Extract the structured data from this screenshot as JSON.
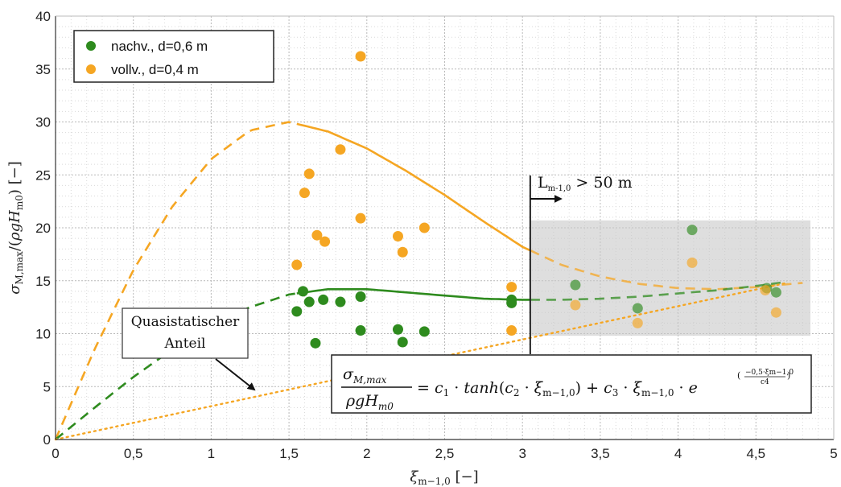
{
  "chart_data": {
    "type": "scatter",
    "xlabel": "ξm−1,0 [−]",
    "ylabel": "σM,max/(ρgHm0) [−]",
    "xlim": [
      0,
      5
    ],
    "ylim": [
      0,
      40
    ],
    "x_ticks": [
      "0",
      "0,5",
      "1",
      "1,5",
      "2",
      "2,5",
      "3",
      "3,5",
      "4",
      "4,5",
      "5"
    ],
    "y_ticks": [
      "0",
      "5",
      "10",
      "15",
      "20",
      "25",
      "30",
      "35",
      "40"
    ],
    "grid": true,
    "legend_position": "top-left",
    "series": [
      {
        "name": "nachv., d=0,6 m",
        "color": "#2e8b1e",
        "points": [
          [
            1.55,
            12.1
          ],
          [
            1.59,
            14.0
          ],
          [
            1.63,
            13.0
          ],
          [
            1.67,
            9.1
          ],
          [
            1.72,
            13.2
          ],
          [
            1.83,
            13.0
          ],
          [
            1.96,
            13.5
          ],
          [
            1.96,
            10.3
          ],
          [
            2.2,
            10.4
          ],
          [
            2.23,
            9.2
          ],
          [
            2.37,
            10.2
          ],
          [
            2.93,
            13.2
          ],
          [
            2.93,
            12.9
          ],
          [
            3.34,
            14.6
          ],
          [
            3.74,
            12.4
          ],
          [
            4.09,
            19.8
          ],
          [
            4.57,
            14.3
          ],
          [
            4.63,
            13.9
          ]
        ]
      },
      {
        "name": "vollv., d=0,4 m",
        "color": "#f5a623",
        "points": [
          [
            1.96,
            36.2
          ],
          [
            1.83,
            27.4
          ],
          [
            1.63,
            25.1
          ],
          [
            1.6,
            23.3
          ],
          [
            1.96,
            20.9
          ],
          [
            1.68,
            19.3
          ],
          [
            1.73,
            18.7
          ],
          [
            2.2,
            19.2
          ],
          [
            2.37,
            20.0
          ],
          [
            2.23,
            17.7
          ],
          [
            1.55,
            16.5
          ],
          [
            2.93,
            14.4
          ],
          [
            2.93,
            10.3
          ],
          [
            3.34,
            12.7
          ],
          [
            3.74,
            11.0
          ],
          [
            4.09,
            16.7
          ],
          [
            4.56,
            14.1
          ],
          [
            4.63,
            12.0
          ]
        ]
      }
    ],
    "fit_curves": [
      {
        "color": "#f5a623",
        "x": [
          0,
          0.25,
          0.5,
          0.75,
          1.0,
          1.25,
          1.5,
          1.75,
          2.0,
          2.25,
          2.5,
          2.75,
          3.0,
          3.25,
          3.5,
          3.75,
          4.0,
          4.25,
          4.5,
          4.8
        ],
        "y": [
          0,
          8.5,
          16.0,
          22.0,
          26.5,
          29.2,
          30.0,
          29.1,
          27.5,
          25.4,
          23.1,
          20.6,
          18.2,
          16.5,
          15.4,
          14.7,
          14.3,
          14.2,
          14.4,
          14.8
        ],
        "solid_range": [
          1.55,
          3.05
        ]
      },
      {
        "color": "#2e8b1e",
        "x": [
          0,
          0.25,
          0.5,
          0.75,
          1.0,
          1.25,
          1.5,
          1.75,
          2.0,
          2.25,
          2.5,
          2.75,
          3.0,
          3.25,
          3.5,
          3.75,
          4.0,
          4.25,
          4.5,
          4.7
        ],
        "y": [
          0,
          3.0,
          5.9,
          8.5,
          10.8,
          12.5,
          13.7,
          14.2,
          14.2,
          13.9,
          13.6,
          13.3,
          13.2,
          13.2,
          13.3,
          13.5,
          13.8,
          14.1,
          14.5,
          14.9
        ],
        "solid_range": [
          1.55,
          3.05
        ]
      }
    ],
    "quasistatic_line": {
      "color": "#f5a623",
      "x": [
        0,
        4.7
      ],
      "y": [
        0,
        14.8
      ]
    },
    "shaded_region": {
      "x": [
        3.05,
        4.85
      ],
      "y": [
        9.8,
        20.7
      ]
    },
    "vertical_line_x": 3.05,
    "annotations": {
      "quasi_label_line1": "Quasistatischer",
      "quasi_label_line2": "Anteil",
      "wave_length_label": "Lm-1,0 > 50 m",
      "formula": "σM,max/ρgHm0 = c1 · tanh(c2 · ξm−1,0) + c3 · ξm−1,0 · e^(−0,5·ξm−1,0 / c4)"
    }
  }
}
